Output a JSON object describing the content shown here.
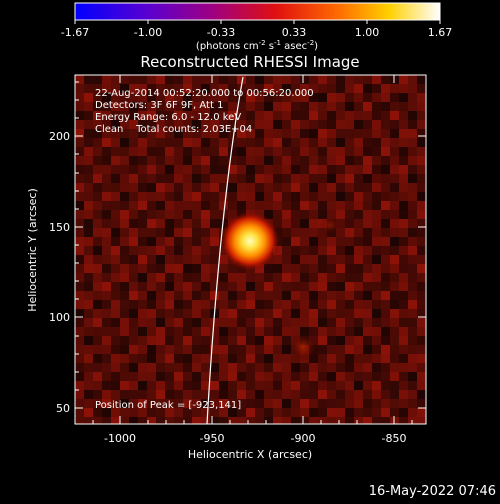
{
  "colorbar": {
    "ticks": [
      "-1.67",
      "-1.00",
      "-0.33",
      "0.33",
      "1.00",
      "1.67"
    ],
    "unit_main": "(photons cm",
    "unit_exp1": "-2",
    "unit_mid": " s",
    "unit_exp2": "-1",
    "unit_end": " asec",
    "unit_exp3": "-2",
    "unit_close": ")"
  },
  "title": "Reconstructed RHESSI Image",
  "annotations": {
    "time_range": "22-Aug-2014 00:52:20.000 to 00:56:20.000",
    "detectors": "Detectors: 3F 6F 9F, Att 1",
    "energy": "Energy Range: 6.0 - 12.0 keV",
    "clean": "Clean    Total counts: 2.03E+04",
    "peak": "Position of Peak = [-923,141]"
  },
  "axes": {
    "xlabel": "Heliocentric X (arcsec)",
    "ylabel": "Heliocentric Y (arcsec)",
    "x_ticks": [
      "-1000",
      "-950",
      "-900",
      "-850"
    ],
    "y_ticks": [
      "50",
      "100",
      "150",
      "200"
    ]
  },
  "timestamp": "16-May-2022 07:46",
  "colors": {
    "colormap": [
      "#0000ff",
      "#6a00c8",
      "#b0005a",
      "#ff1a00",
      "#ff9600",
      "#ffff80",
      "#ffffff"
    ],
    "peak": "#ffff90",
    "limb": "#ffffff"
  },
  "image": {
    "peak_position_arcsec": [
      -923,
      141
    ],
    "x_range_arcsec": [
      -1020,
      -828
    ],
    "y_range_arcsec": [
      40,
      235
    ]
  }
}
